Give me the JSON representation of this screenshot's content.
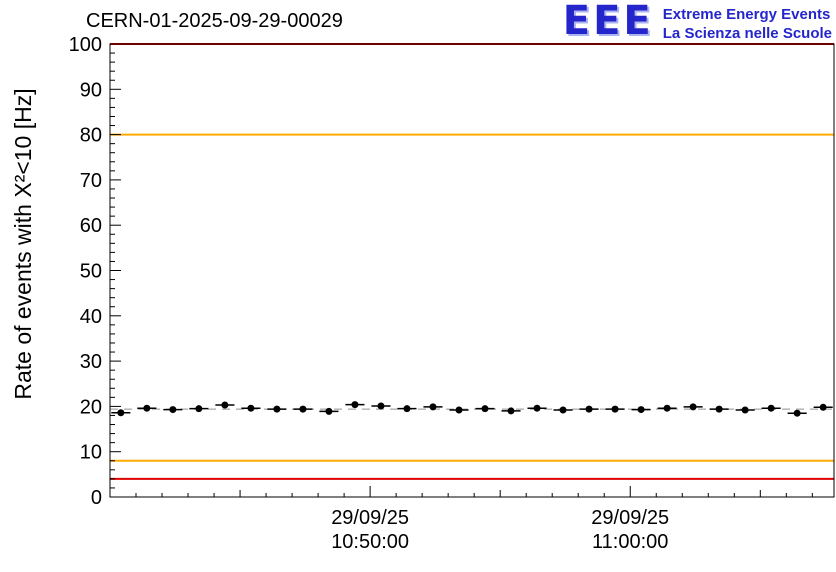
{
  "header": {
    "title": "CERN-01-2025-09-29-00029",
    "logo": {
      "text": "EEE",
      "line1": "Extreme Energy Events",
      "line2": "La Scienza nelle Scuole",
      "color": "#2525cc"
    }
  },
  "chart_data": {
    "type": "line",
    "title": "CERN-01-2025-09-29-00029",
    "ylabel": "Rate of events with X²<10 [Hz]",
    "ylim": [
      0,
      100
    ],
    "y_major_step": 10,
    "y_minor_step": 2,
    "grid": false,
    "x_range_seconds": [
      0,
      1670
    ],
    "x_minor_step_seconds": 60,
    "x_ticks": [
      {
        "pos_seconds": 600,
        "label_line1": "29/09/25",
        "label_line2": "10:50:00"
      },
      {
        "pos_seconds": 1200,
        "label_line1": "29/09/25",
        "label_line2": "11:00:00"
      }
    ],
    "threshold_lines": [
      {
        "y": 100,
        "color": "#dd0000"
      },
      {
        "y": 80,
        "color": "#ffaa00"
      },
      {
        "y": 8,
        "color": "#ffaa00"
      },
      {
        "y": 4,
        "color": "#dd0000"
      }
    ],
    "mean_line": {
      "y": 19.4,
      "color": "#909090",
      "style": "dashed"
    },
    "series": [
      {
        "name": "rate",
        "color": "#000000",
        "marker": "filled-circle",
        "y_error": 0.6,
        "bin_halfwidth_seconds": 22,
        "t_seconds": [
          25,
          85,
          145,
          205,
          265,
          325,
          385,
          445,
          505,
          565,
          625,
          685,
          745,
          805,
          865,
          925,
          985,
          1045,
          1105,
          1165,
          1225,
          1285,
          1345,
          1405,
          1465,
          1525,
          1585,
          1645
        ],
        "y": [
          18.6,
          19.6,
          19.3,
          19.5,
          20.3,
          19.6,
          19.4,
          19.4,
          18.9,
          20.4,
          20.1,
          19.5,
          19.9,
          19.2,
          19.5,
          19.0,
          19.6,
          19.2,
          19.4,
          19.4,
          19.3,
          19.6,
          19.9,
          19.4,
          19.2,
          19.6,
          18.5,
          19.8
        ]
      }
    ]
  }
}
